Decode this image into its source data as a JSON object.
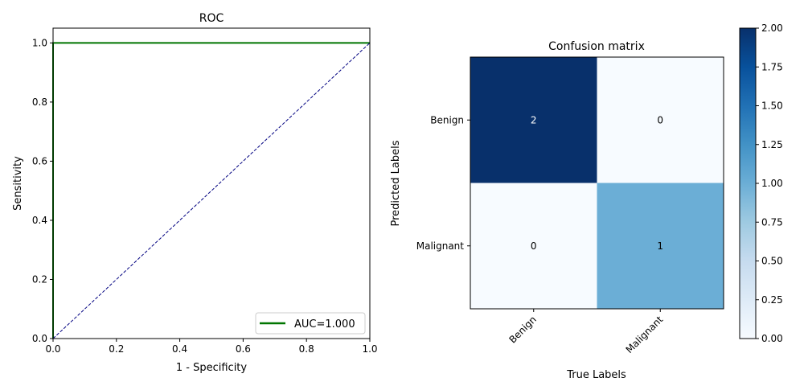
{
  "chart_data": [
    {
      "type": "line",
      "title": "ROC",
      "xlabel": "1 - Specificity",
      "ylabel": "Sensitivity",
      "xlim": [
        0,
        1
      ],
      "ylim": [
        0,
        1.05
      ],
      "xticks": [
        "0.0",
        "0.2",
        "0.4",
        "0.6",
        "0.8",
        "1.0"
      ],
      "yticks": [
        "0.0",
        "0.2",
        "0.4",
        "0.6",
        "0.8",
        "1.0"
      ],
      "legend_position": "lower-right",
      "series": [
        {
          "name": "AUC=1.000",
          "color": "#007500",
          "style": "solid",
          "x": [
            0,
            0,
            1
          ],
          "y": [
            0,
            1,
            1
          ]
        },
        {
          "color": "#000080",
          "style": "dashed",
          "x": [
            0,
            1
          ],
          "y": [
            0,
            1
          ]
        }
      ]
    },
    {
      "type": "heatmap",
      "title": "Confusion matrix",
      "xlabel": "True Labels",
      "ylabel": "Predicted Labels",
      "x_categories": [
        "Benign",
        "Malignant"
      ],
      "y_categories": [
        "Benign",
        "Malignant"
      ],
      "values": [
        [
          2,
          0
        ],
        [
          0,
          1
        ]
      ],
      "colormap": "Blues",
      "colorbar": {
        "range": [
          0,
          2
        ],
        "ticks": [
          "0.00",
          "0.25",
          "0.50",
          "0.75",
          "1.00",
          "1.25",
          "1.50",
          "1.75",
          "2.00"
        ]
      }
    }
  ]
}
